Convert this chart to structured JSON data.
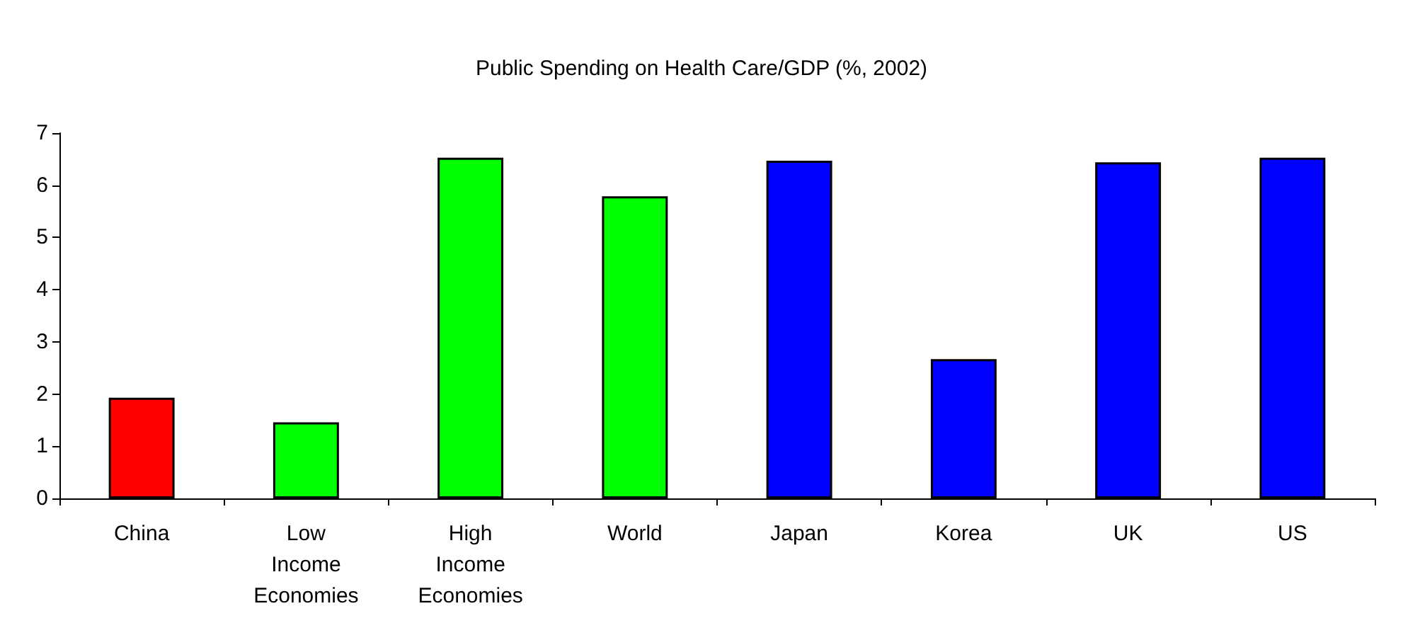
{
  "chart_data": {
    "type": "bar",
    "title": "Public Spending on Health Care/GDP (%, 2002)",
    "categories": [
      "China",
      "Low Income Economies",
      "High Income Economies",
      "World",
      "Japan",
      "Korea",
      "UK",
      "US"
    ],
    "values": [
      1.93,
      1.46,
      6.53,
      5.79,
      6.47,
      2.67,
      6.44,
      6.53
    ],
    "colors": [
      "#ff0000",
      "#00ff00",
      "#00ff00",
      "#00ff00",
      "#0000ff",
      "#0000ff",
      "#0000ff",
      "#0000ff"
    ],
    "ylim": [
      0,
      7
    ],
    "yticks": [
      0,
      1,
      2,
      3,
      4,
      5,
      6,
      7
    ]
  }
}
